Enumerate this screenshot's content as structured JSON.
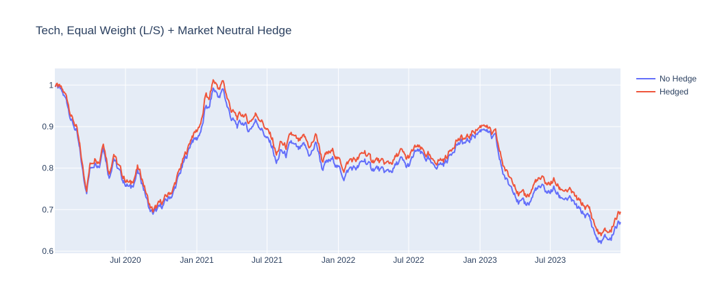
{
  "chart_data": {
    "type": "line",
    "title": "Tech, Equal Weight (L/S) + Market Neutral Hedge",
    "xlabel": "",
    "ylabel": "",
    "x_range": [
      "2020-01-01",
      "2023-12-29"
    ],
    "ylim": [
      0.595,
      1.04
    ],
    "x_ticks": [
      {
        "date": "2020-07-01",
        "label": "Jul 2020"
      },
      {
        "date": "2021-01-01",
        "label": "Jan 2021"
      },
      {
        "date": "2021-07-01",
        "label": "Jul 2021"
      },
      {
        "date": "2022-01-01",
        "label": "Jan 2022"
      },
      {
        "date": "2022-07-01",
        "label": "Jul 2022"
      },
      {
        "date": "2023-01-01",
        "label": "Jan 2023"
      },
      {
        "date": "2023-07-01",
        "label": "Jul 2023"
      }
    ],
    "y_ticks": [
      {
        "value": 0.6,
        "label": "0.6"
      },
      {
        "value": 0.7,
        "label": "0.7"
      },
      {
        "value": 0.8,
        "label": "0.8"
      },
      {
        "value": 0.9,
        "label": "0.9"
      },
      {
        "value": 1.0,
        "label": "1"
      }
    ],
    "grid": true,
    "legend_position": "top-right",
    "plot_bgcolor": "#e5ecf6",
    "series": [
      {
        "name": "No Hedge",
        "color": "#636efa",
        "points": [
          [
            "2020-01-01",
            1.0
          ],
          [
            "2020-01-15",
            0.985
          ],
          [
            "2020-02-01",
            0.96
          ],
          [
            "2020-02-15",
            0.91
          ],
          [
            "2020-02-25",
            0.89
          ],
          [
            "2020-03-05",
            0.84
          ],
          [
            "2020-03-16",
            0.77
          ],
          [
            "2020-03-23",
            0.75
          ],
          [
            "2020-04-01",
            0.8
          ],
          [
            "2020-04-15",
            0.82
          ],
          [
            "2020-04-25",
            0.81
          ],
          [
            "2020-05-05",
            0.86
          ],
          [
            "2020-05-20",
            0.78
          ],
          [
            "2020-06-01",
            0.83
          ],
          [
            "2020-06-10",
            0.8
          ],
          [
            "2020-06-25",
            0.77
          ],
          [
            "2020-07-15",
            0.75
          ],
          [
            "2020-08-01",
            0.79
          ],
          [
            "2020-08-15",
            0.76
          ],
          [
            "2020-09-01",
            0.7
          ],
          [
            "2020-09-10",
            0.69
          ],
          [
            "2020-09-25",
            0.7
          ],
          [
            "2020-10-15",
            0.72
          ],
          [
            "2020-11-01",
            0.74
          ],
          [
            "2020-11-20",
            0.79
          ],
          [
            "2020-12-10",
            0.84
          ],
          [
            "2020-12-20",
            0.87
          ],
          [
            "2021-01-01",
            0.87
          ],
          [
            "2021-01-15",
            0.9
          ],
          [
            "2021-01-25",
            0.95
          ],
          [
            "2021-02-01",
            0.94
          ],
          [
            "2021-02-12",
            0.99
          ],
          [
            "2021-02-22",
            0.98
          ],
          [
            "2021-03-01",
            0.97
          ],
          [
            "2021-03-10",
            0.99
          ],
          [
            "2021-03-20",
            0.95
          ],
          [
            "2021-03-31",
            0.92
          ],
          [
            "2021-04-15",
            0.9
          ],
          [
            "2021-05-01",
            0.91
          ],
          [
            "2021-05-15",
            0.89
          ],
          [
            "2021-06-01",
            0.915
          ],
          [
            "2021-06-15",
            0.9
          ],
          [
            "2021-07-01",
            0.87
          ],
          [
            "2021-07-15",
            0.85
          ],
          [
            "2021-07-25",
            0.81
          ],
          [
            "2021-08-05",
            0.84
          ],
          [
            "2021-08-20",
            0.83
          ],
          [
            "2021-09-01",
            0.86
          ],
          [
            "2021-09-20",
            0.84
          ],
          [
            "2021-10-05",
            0.85
          ],
          [
            "2021-10-20",
            0.83
          ],
          [
            "2021-11-05",
            0.86
          ],
          [
            "2021-11-20",
            0.8
          ],
          [
            "2021-12-01",
            0.81
          ],
          [
            "2021-12-20",
            0.82
          ],
          [
            "2022-01-01",
            0.8
          ],
          [
            "2022-01-15",
            0.78
          ],
          [
            "2022-02-01",
            0.8
          ],
          [
            "2022-02-20",
            0.8
          ],
          [
            "2022-03-10",
            0.82
          ],
          [
            "2022-03-25",
            0.8
          ],
          [
            "2022-04-10",
            0.8
          ],
          [
            "2022-04-25",
            0.79
          ],
          [
            "2022-05-10",
            0.79
          ],
          [
            "2022-05-25",
            0.8
          ],
          [
            "2022-06-10",
            0.82
          ],
          [
            "2022-06-25",
            0.8
          ],
          [
            "2022-07-05",
            0.81
          ],
          [
            "2022-07-20",
            0.84
          ],
          [
            "2022-08-05",
            0.83
          ],
          [
            "2022-08-20",
            0.82
          ],
          [
            "2022-09-01",
            0.8
          ],
          [
            "2022-09-15",
            0.81
          ],
          [
            "2022-09-30",
            0.81
          ],
          [
            "2022-10-15",
            0.83
          ],
          [
            "2022-10-31",
            0.86
          ],
          [
            "2022-11-15",
            0.86
          ],
          [
            "2022-12-01",
            0.86
          ],
          [
            "2022-12-15",
            0.88
          ],
          [
            "2023-01-01",
            0.89
          ],
          [
            "2023-01-15",
            0.9
          ],
          [
            "2023-01-31",
            0.87
          ],
          [
            "2023-02-10",
            0.87
          ],
          [
            "2023-02-20",
            0.82
          ],
          [
            "2023-03-01",
            0.79
          ],
          [
            "2023-03-15",
            0.76
          ],
          [
            "2023-03-31",
            0.75
          ],
          [
            "2023-04-10",
            0.72
          ],
          [
            "2023-04-25",
            0.71
          ],
          [
            "2023-05-10",
            0.72
          ],
          [
            "2023-05-25",
            0.75
          ],
          [
            "2023-06-10",
            0.75
          ],
          [
            "2023-06-25",
            0.74
          ],
          [
            "2023-07-10",
            0.75
          ],
          [
            "2023-07-25",
            0.73
          ],
          [
            "2023-08-10",
            0.73
          ],
          [
            "2023-08-25",
            0.72
          ],
          [
            "2023-09-10",
            0.7
          ],
          [
            "2023-09-25",
            0.69
          ],
          [
            "2023-10-10",
            0.68
          ],
          [
            "2023-10-25",
            0.64
          ],
          [
            "2023-11-05",
            0.62
          ],
          [
            "2023-11-20",
            0.63
          ],
          [
            "2023-12-05",
            0.63
          ],
          [
            "2023-12-15",
            0.66
          ],
          [
            "2023-12-29",
            0.67
          ]
        ]
      },
      {
        "name": "Hedged",
        "color": "#ef553b",
        "points": [
          [
            "2020-01-01",
            1.0
          ],
          [
            "2020-01-15",
            0.99
          ],
          [
            "2020-02-01",
            0.97
          ],
          [
            "2020-02-15",
            0.92
          ],
          [
            "2020-02-25",
            0.9
          ],
          [
            "2020-03-05",
            0.85
          ],
          [
            "2020-03-16",
            0.78
          ],
          [
            "2020-03-23",
            0.755
          ],
          [
            "2020-04-01",
            0.81
          ],
          [
            "2020-04-15",
            0.83
          ],
          [
            "2020-04-25",
            0.82
          ],
          [
            "2020-05-05",
            0.87
          ],
          [
            "2020-05-20",
            0.79
          ],
          [
            "2020-06-01",
            0.84
          ],
          [
            "2020-06-10",
            0.81
          ],
          [
            "2020-06-25",
            0.78
          ],
          [
            "2020-07-15",
            0.76
          ],
          [
            "2020-08-01",
            0.8
          ],
          [
            "2020-08-15",
            0.77
          ],
          [
            "2020-09-01",
            0.71
          ],
          [
            "2020-09-10",
            0.695
          ],
          [
            "2020-09-25",
            0.71
          ],
          [
            "2020-10-15",
            0.73
          ],
          [
            "2020-11-01",
            0.75
          ],
          [
            "2020-11-20",
            0.8
          ],
          [
            "2020-12-10",
            0.85
          ],
          [
            "2020-12-20",
            0.88
          ],
          [
            "2021-01-01",
            0.89
          ],
          [
            "2021-01-15",
            0.92
          ],
          [
            "2021-01-25",
            0.98
          ],
          [
            "2021-02-01",
            0.96
          ],
          [
            "2021-02-12",
            1.01
          ],
          [
            "2021-02-22",
            1.0
          ],
          [
            "2021-03-01",
            0.99
          ],
          [
            "2021-03-10",
            1.01
          ],
          [
            "2021-03-20",
            0.97
          ],
          [
            "2021-03-31",
            0.94
          ],
          [
            "2021-04-15",
            0.92
          ],
          [
            "2021-05-01",
            0.93
          ],
          [
            "2021-05-15",
            0.91
          ],
          [
            "2021-06-01",
            0.93
          ],
          [
            "2021-06-15",
            0.92
          ],
          [
            "2021-07-01",
            0.89
          ],
          [
            "2021-07-15",
            0.87
          ],
          [
            "2021-07-25",
            0.83
          ],
          [
            "2021-08-05",
            0.86
          ],
          [
            "2021-08-20",
            0.85
          ],
          [
            "2021-09-01",
            0.88
          ],
          [
            "2021-09-20",
            0.86
          ],
          [
            "2021-10-05",
            0.87
          ],
          [
            "2021-10-20",
            0.85
          ],
          [
            "2021-11-05",
            0.88
          ],
          [
            "2021-11-20",
            0.82
          ],
          [
            "2021-12-01",
            0.83
          ],
          [
            "2021-12-20",
            0.84
          ],
          [
            "2022-01-01",
            0.82
          ],
          [
            "2022-01-15",
            0.8
          ],
          [
            "2022-02-01",
            0.82
          ],
          [
            "2022-02-20",
            0.82
          ],
          [
            "2022-03-10",
            0.84
          ],
          [
            "2022-03-25",
            0.82
          ],
          [
            "2022-04-10",
            0.82
          ],
          [
            "2022-04-25",
            0.81
          ],
          [
            "2022-05-10",
            0.81
          ],
          [
            "2022-05-25",
            0.82
          ],
          [
            "2022-06-10",
            0.84
          ],
          [
            "2022-06-25",
            0.82
          ],
          [
            "2022-07-05",
            0.83
          ],
          [
            "2022-07-20",
            0.85
          ],
          [
            "2022-08-05",
            0.84
          ],
          [
            "2022-08-20",
            0.83
          ],
          [
            "2022-09-01",
            0.81
          ],
          [
            "2022-09-15",
            0.82
          ],
          [
            "2022-09-30",
            0.82
          ],
          [
            "2022-10-15",
            0.84
          ],
          [
            "2022-10-31",
            0.87
          ],
          [
            "2022-11-15",
            0.87
          ],
          [
            "2022-12-01",
            0.87
          ],
          [
            "2022-12-15",
            0.89
          ],
          [
            "2023-01-01",
            0.9
          ],
          [
            "2023-01-15",
            0.91
          ],
          [
            "2023-01-31",
            0.88
          ],
          [
            "2023-02-10",
            0.88
          ],
          [
            "2023-02-20",
            0.84
          ],
          [
            "2023-03-01",
            0.81
          ],
          [
            "2023-03-15",
            0.78
          ],
          [
            "2023-03-31",
            0.77
          ],
          [
            "2023-04-10",
            0.74
          ],
          [
            "2023-04-25",
            0.73
          ],
          [
            "2023-05-10",
            0.74
          ],
          [
            "2023-05-25",
            0.77
          ],
          [
            "2023-06-10",
            0.77
          ],
          [
            "2023-06-25",
            0.76
          ],
          [
            "2023-07-10",
            0.77
          ],
          [
            "2023-07-25",
            0.75
          ],
          [
            "2023-08-10",
            0.75
          ],
          [
            "2023-08-25",
            0.74
          ],
          [
            "2023-09-10",
            0.72
          ],
          [
            "2023-09-25",
            0.71
          ],
          [
            "2023-10-10",
            0.7
          ],
          [
            "2023-10-25",
            0.66
          ],
          [
            "2023-11-05",
            0.64
          ],
          [
            "2023-11-20",
            0.645
          ],
          [
            "2023-12-05",
            0.65
          ],
          [
            "2023-12-15",
            0.68
          ],
          [
            "2023-12-29",
            0.695
          ]
        ]
      }
    ]
  }
}
